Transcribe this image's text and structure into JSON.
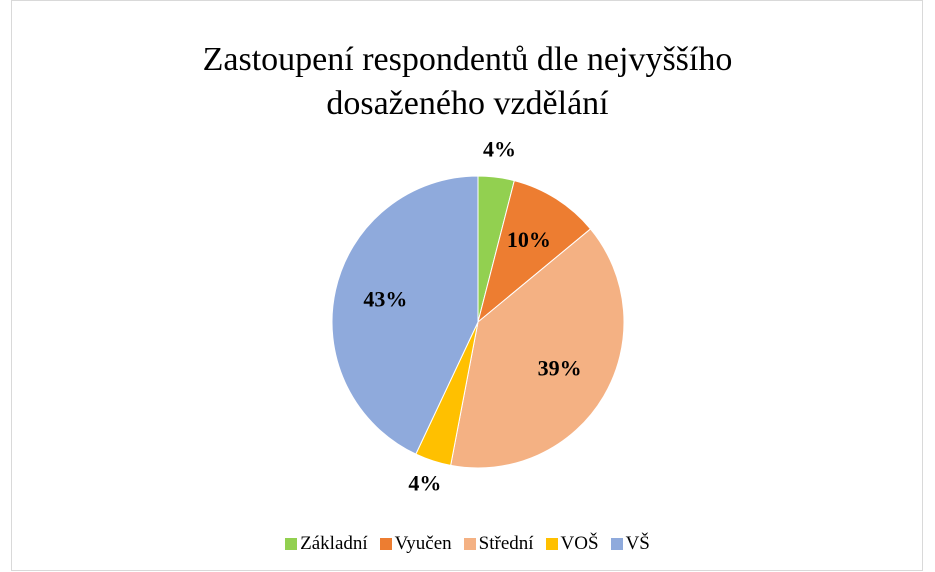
{
  "chart_data": {
    "type": "pie",
    "title": "Zastoupení respondentů dle nejvyššího dosaženého vzdělání",
    "categories": [
      "Základní",
      "Vyučen",
      "Střední",
      "VOŠ",
      "VŠ"
    ],
    "values": [
      4,
      10,
      39,
      4,
      43
    ],
    "value_labels": [
      "4%",
      "10%",
      "39%",
      "4%",
      "43%"
    ],
    "colors": [
      "#92d050",
      "#ed7d31",
      "#f4b183",
      "#ffc000",
      "#8faadc"
    ],
    "legend": "bottom"
  }
}
